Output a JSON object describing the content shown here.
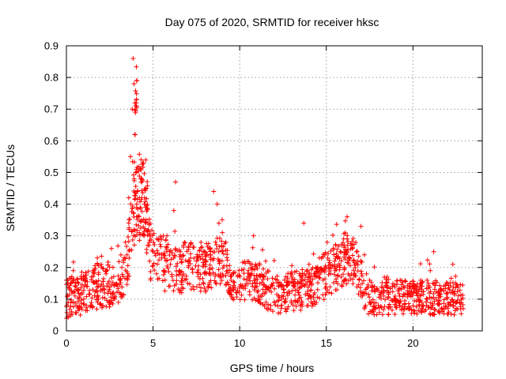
{
  "chart_data": {
    "type": "scatter",
    "title": "Day 075 of 2020, SRMTID for receiver hksc",
    "xlabel": "GPS time / hours",
    "ylabel": "SRMTID / TECUs",
    "xlim": [
      0,
      24
    ],
    "ylim": [
      0,
      0.9
    ],
    "xticks": [
      0,
      5,
      10,
      15,
      20
    ],
    "xtick_labels": [
      "0",
      "5",
      "10",
      "15",
      "20"
    ],
    "yticks": [
      0,
      0.1,
      0.2,
      0.3,
      0.4,
      0.5,
      0.6,
      0.7,
      0.8,
      0.9
    ],
    "ytick_labels": [
      "0",
      "0.1",
      "0.2",
      "0.3",
      "0.4",
      "0.5",
      "0.6",
      "0.7",
      "0.8",
      "0.9"
    ],
    "grid": true,
    "marker": "+",
    "marker_color": "#ff0000",
    "x_range_of_data": [
      0,
      22.9
    ],
    "series": [
      {
        "name": "SRMTID",
        "x": [
          0.0,
          0.1,
          0.2,
          0.3,
          0.4,
          0.5,
          0.6,
          0.7,
          0.8,
          0.9,
          1.0,
          1.2,
          1.4,
          1.6,
          1.8,
          2.0,
          2.2,
          2.4,
          2.6,
          2.8,
          3.0,
          3.2,
          3.4,
          3.5,
          3.6,
          3.7,
          3.8,
          3.85,
          3.9,
          3.95,
          4.0,
          4.05,
          4.1,
          4.2,
          4.3,
          4.4,
          4.5,
          4.6,
          4.7,
          4.8,
          5.0,
          5.2,
          5.5,
          5.8,
          6.0,
          6.2,
          6.3,
          6.5,
          7.0,
          7.5,
          8.0,
          8.3,
          8.5,
          8.7,
          8.8,
          9.0,
          9.2,
          9.5,
          10.0,
          10.5,
          10.8,
          11.0,
          11.5,
          12.0,
          12.5,
          13.0,
          13.5,
          13.7,
          14.0,
          14.5,
          15.0,
          15.5,
          15.8,
          16.0,
          16.2,
          16.5,
          16.8,
          17.0,
          17.2,
          17.5,
          18.0,
          18.3,
          18.5,
          19.0,
          19.5,
          20.0,
          20.5,
          21.0,
          21.2,
          21.5,
          22.0,
          22.3,
          22.5,
          22.9
        ],
        "y": [
          0.04,
          0.09,
          0.13,
          0.06,
          0.19,
          0.11,
          0.08,
          0.15,
          0.05,
          0.12,
          0.1,
          0.14,
          0.08,
          0.18,
          0.09,
          0.21,
          0.12,
          0.15,
          0.26,
          0.11,
          0.09,
          0.2,
          0.28,
          0.24,
          0.42,
          0.55,
          0.7,
          0.86,
          0.78,
          0.62,
          0.5,
          0.36,
          0.44,
          0.31,
          0.48,
          0.53,
          0.4,
          0.35,
          0.27,
          0.22,
          0.25,
          0.18,
          0.23,
          0.3,
          0.21,
          0.38,
          0.47,
          0.19,
          0.15,
          0.22,
          0.18,
          0.26,
          0.44,
          0.4,
          0.34,
          0.31,
          0.28,
          0.16,
          0.14,
          0.19,
          0.3,
          0.15,
          0.22,
          0.09,
          0.14,
          0.17,
          0.08,
          0.34,
          0.21,
          0.13,
          0.12,
          0.19,
          0.25,
          0.29,
          0.36,
          0.26,
          0.22,
          0.33,
          0.24,
          0.16,
          0.08,
          0.11,
          0.17,
          0.1,
          0.07,
          0.14,
          0.09,
          0.19,
          0.25,
          0.06,
          0.12,
          0.21,
          0.09,
          0.07
        ]
      }
    ]
  }
}
